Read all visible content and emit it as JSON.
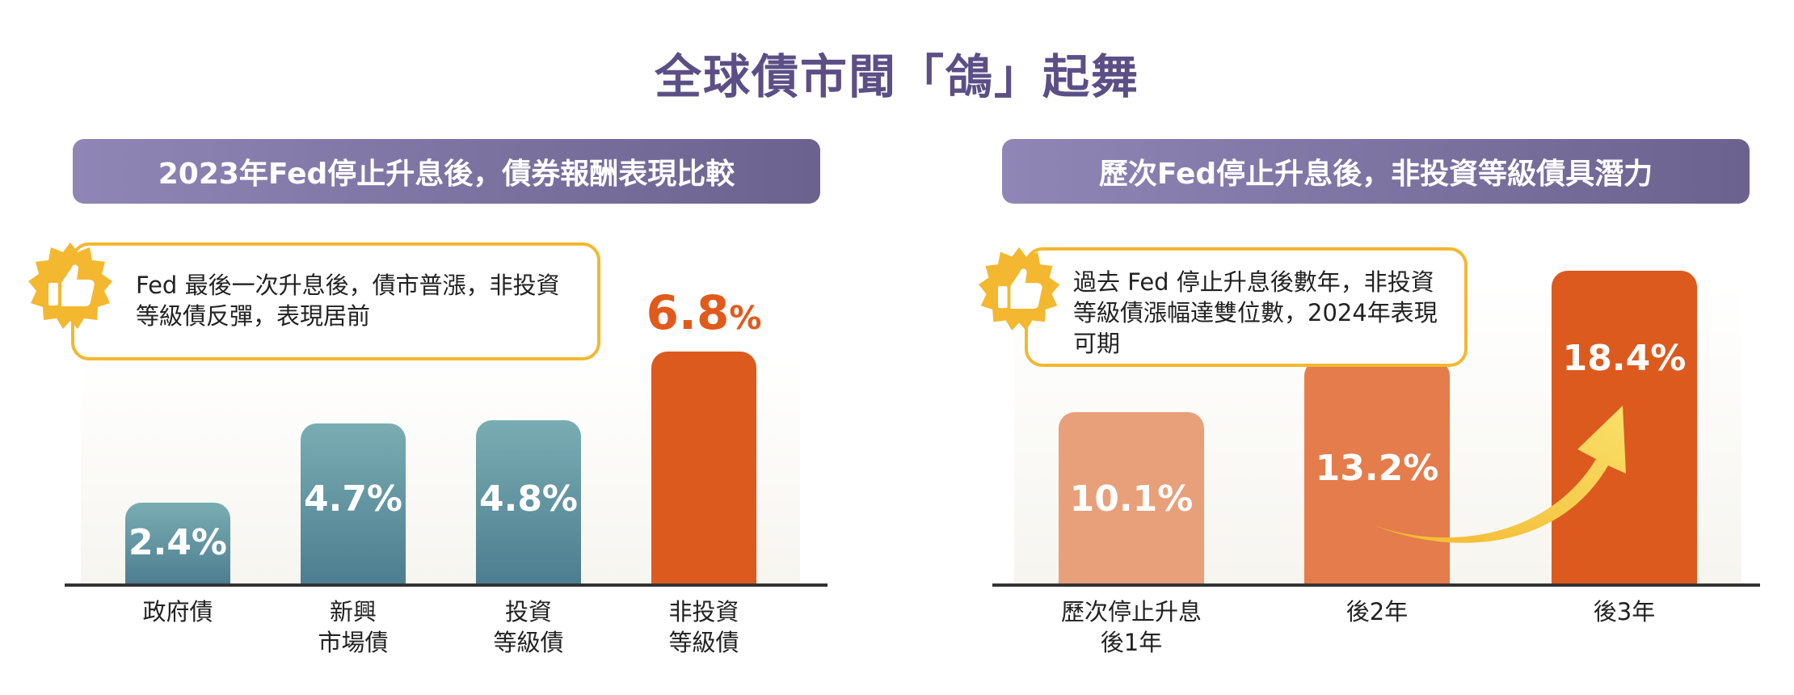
{
  "title": "全球債市聞「鴿」起舞",
  "colors": {
    "title": "#5c4f86",
    "header_bg": "#7a7099",
    "teal_bar": "#5d93a0",
    "orange_bar": "#dc5a1e",
    "salmon_bar": "#e8a07a",
    "mid_orange_bar": "#e57c4b",
    "callout_border": "#f3b82f",
    "arrow": "#f6cf4f"
  },
  "left": {
    "header": "2023年Fed停止升息後，債券報酬表現比較",
    "callout": "Fed 最後一次升息後，債市普漲，非投資等級債反彈，表現居前",
    "badge_icon": "thumbs-up-icon"
  },
  "right": {
    "header": "歷次Fed停止升息後，非投資等級債具潛力",
    "callout": "過去 Fed 停止升息後數年，非投資等級債漲幅達雙位數，2024年表現可期",
    "badge_icon": "thumbs-up-icon",
    "arrow_icon": "rising-arrow-icon"
  },
  "chart_data": [
    {
      "type": "bar",
      "title": "2023年Fed停止升息後，債券報酬表現比較",
      "categories": [
        "政府債",
        "新興\n市場債",
        "投資\n等級債",
        "非投資\n等級債"
      ],
      "values": [
        2.4,
        4.7,
        4.8,
        6.8
      ],
      "labels": [
        "2.4%",
        "4.7%",
        "4.8%",
        "6.8"
      ],
      "highlight_unit": "%",
      "ylim": [
        0,
        7
      ],
      "grid": false,
      "bar_colors": [
        "teal",
        "teal",
        "teal",
        "orange"
      ]
    },
    {
      "type": "bar",
      "title": "歷次Fed停止升息後，非投資等級債具潛力",
      "categories": [
        "歷次停止升息\n後1年",
        "後2年",
        "後3年"
      ],
      "values": [
        10.1,
        13.2,
        18.4
      ],
      "labels": [
        "10.1%",
        "13.2%",
        "18.4%"
      ],
      "ylim": [
        0,
        19
      ],
      "grid": false,
      "bar_colors": [
        "salmon",
        "mid_orange",
        "orange"
      ]
    }
  ]
}
